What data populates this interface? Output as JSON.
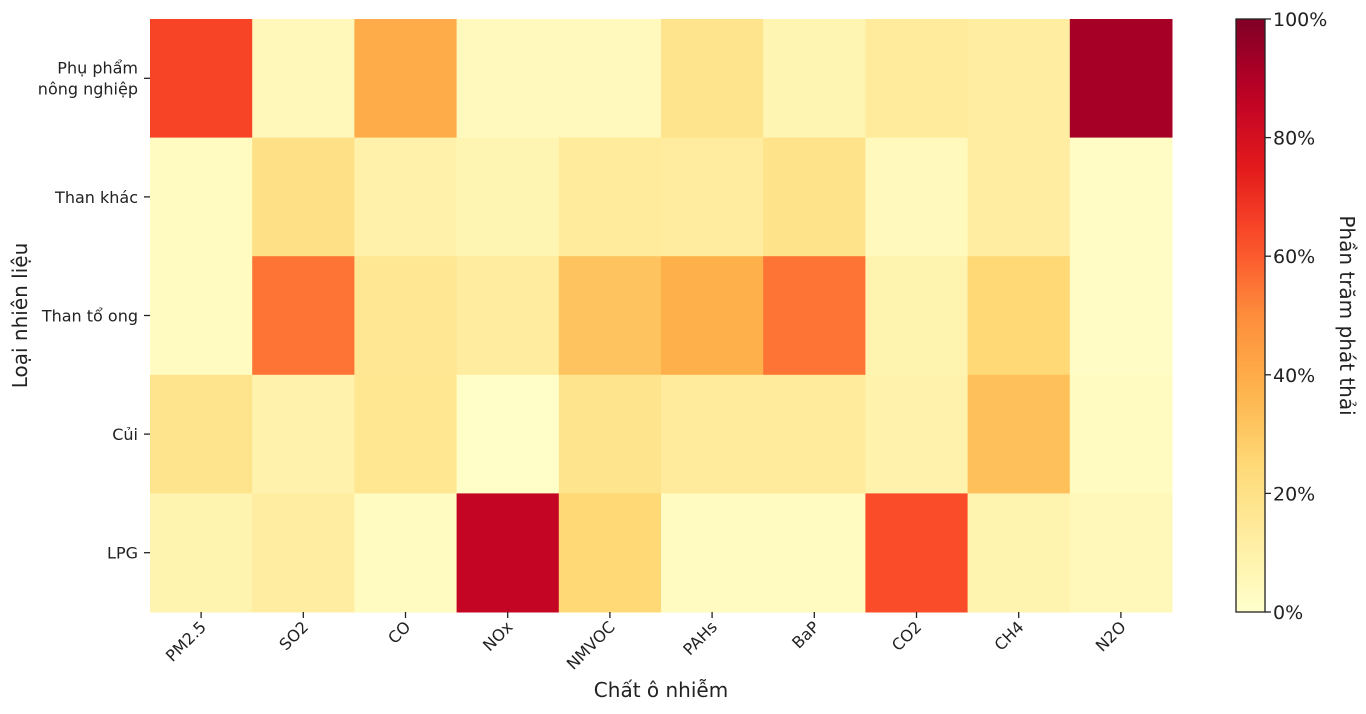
{
  "chart_data": {
    "type": "heatmap",
    "title": "",
    "xlabel": "Chất ô nhiễm",
    "ylabel": "Loại nhiên liệu",
    "x_categories": [
      "PM2.5",
      "SO2",
      "CO",
      "NOx",
      "NMVOC",
      "PAHs",
      "BaP",
      "CO2",
      "CH4",
      "N2O"
    ],
    "y_categories": [
      "Phụ phẩm nông nghiệp",
      "Than khác",
      "Than tổ ong",
      "Củi",
      "LPG"
    ],
    "values": [
      [
        65,
        5,
        40,
        4,
        4,
        18,
        7,
        14,
        12,
        92
      ],
      [
        3,
        20,
        10,
        7,
        14,
        13,
        19,
        4,
        12,
        2
      ],
      [
        3,
        55,
        16,
        13,
        32,
        38,
        55,
        8,
        25,
        2
      ],
      [
        18,
        9,
        17,
        1,
        18,
        14,
        14,
        9,
        33,
        3
      ],
      [
        8,
        12,
        3,
        85,
        25,
        3,
        3,
        63,
        8,
        5
      ]
    ],
    "colorbar": {
      "label": "Phần trăm phát thải",
      "range": [
        0,
        100
      ],
      "ticks": [
        0,
        20,
        40,
        60,
        80,
        100
      ],
      "tick_labels": [
        "0%",
        "20%",
        "40%",
        "60%",
        "80%",
        "100%"
      ],
      "colormap": "YlOrRd"
    }
  }
}
